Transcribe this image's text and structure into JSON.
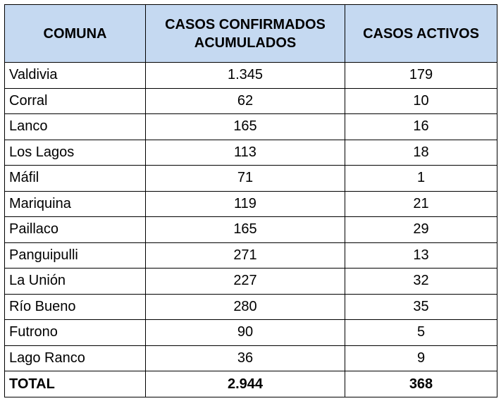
{
  "table": {
    "headers": {
      "comuna": "COMUNA",
      "confirmados": "CASOS CONFIRMADOS ACUMULADOS",
      "activos": "CASOS ACTIVOS"
    },
    "rows": [
      {
        "comuna": "Valdivia",
        "confirmados": "1.345",
        "activos": "179"
      },
      {
        "comuna": "Corral",
        "confirmados": "62",
        "activos": "10"
      },
      {
        "comuna": "Lanco",
        "confirmados": "165",
        "activos": "16"
      },
      {
        "comuna": "Los Lagos",
        "confirmados": "113",
        "activos": "18"
      },
      {
        "comuna": "Máfil",
        "confirmados": "71",
        "activos": "1"
      },
      {
        "comuna": "Mariquina",
        "confirmados": "119",
        "activos": "21"
      },
      {
        "comuna": "Paillaco",
        "confirmados": "165",
        "activos": "29"
      },
      {
        "comuna": "Panguipulli",
        "confirmados": "271",
        "activos": "13"
      },
      {
        "comuna": "La Unión",
        "confirmados": "227",
        "activos": "32"
      },
      {
        "comuna": "Río Bueno",
        "confirmados": "280",
        "activos": "35"
      },
      {
        "comuna": "Futrono",
        "confirmados": "90",
        "activos": "5"
      },
      {
        "comuna": "Lago Ranco",
        "confirmados": "36",
        "activos": "9"
      }
    ],
    "total": {
      "label": "TOTAL",
      "confirmados": "2.944",
      "activos": "368"
    },
    "colors": {
      "header_background": "#c5d9f1",
      "border": "#000000"
    }
  }
}
